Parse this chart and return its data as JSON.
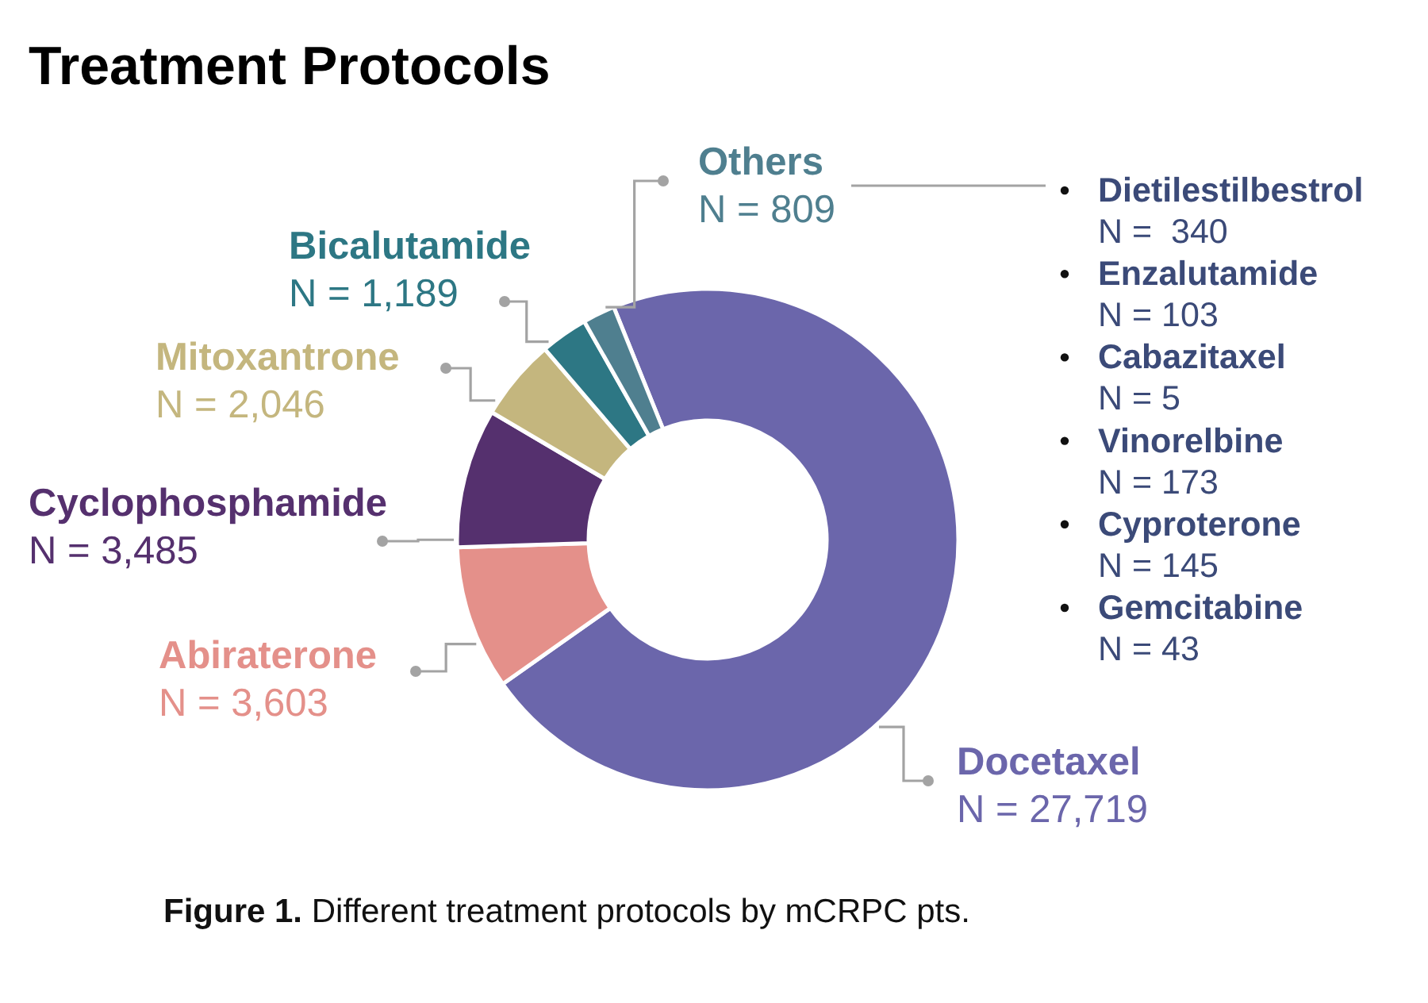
{
  "chart_data": {
    "type": "donut",
    "title": "Treatment Protocols",
    "categories": [
      "Docetaxel",
      "Abiraterone",
      "Cyclophosphamide",
      "Mitoxantrone",
      "Bicalutamide",
      "Others"
    ],
    "values": [
      27719,
      3603,
      3485,
      2046,
      1189,
      809
    ],
    "colors": [
      "#6b66ab",
      "#e4908a",
      "#55306e",
      "#c4b67e",
      "#2d7784",
      "#4f7f8f"
    ],
    "value_labels": [
      "N = 27,719",
      "N = 3,603",
      "N = 3,485",
      "N = 2,046",
      "N = 1,189",
      "N = 809"
    ],
    "annotations": [
      "Dietilestilbestrol",
      "N =  340",
      "Enzalutamide",
      "N = 103",
      "Cabazitaxel",
      "N = 5",
      "Vinorelbine",
      "N = 173",
      "Cyproterone",
      "N = 145",
      "Gemcitabine",
      "N = 43",
      "Figure 1. Different treatment protocols by mCRPC pts."
    ]
  }
}
